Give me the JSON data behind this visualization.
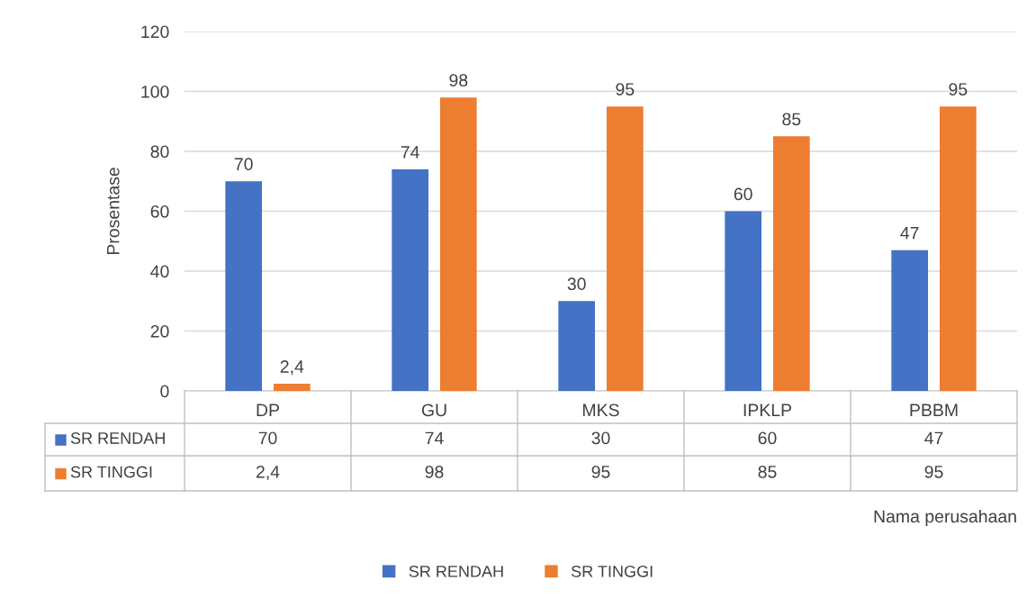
{
  "chart_data": {
    "type": "bar",
    "ylabel": "Prosentase",
    "annotations": [
      "Nama perusahaan"
    ],
    "categories": [
      "DP",
      "GU",
      "MKS",
      "IPKLP",
      "PBBM"
    ],
    "series": [
      {
        "name": "SR RENDAH",
        "color": "#4472c4",
        "values": [
          70,
          74,
          30,
          60,
          47
        ],
        "value_labels": [
          "70",
          "74",
          "30",
          "60",
          "47"
        ]
      },
      {
        "name": "SR TINGGI",
        "color": "#ed7d31",
        "values": [
          2.4,
          98,
          95,
          85,
          95
        ],
        "value_labels": [
          "2,4",
          "98",
          "95",
          "85",
          "95"
        ]
      }
    ],
    "ylim": [
      0,
      120
    ],
    "yticks": [
      0,
      20,
      40,
      60,
      80,
      100,
      120
    ],
    "grid": "y",
    "legend": "bottom"
  }
}
